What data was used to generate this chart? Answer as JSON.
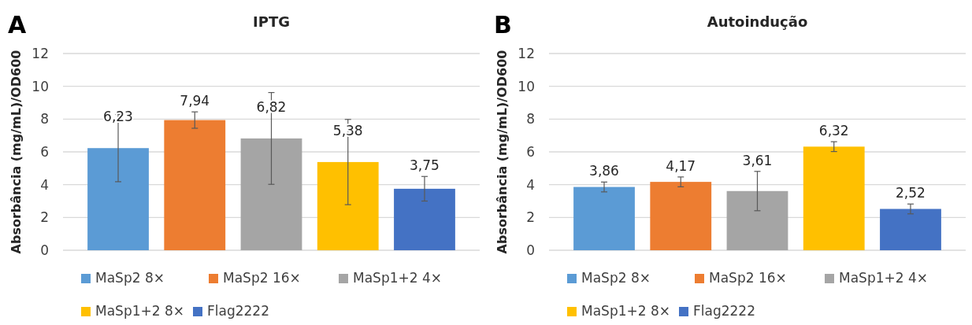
{
  "chart_data": [
    {
      "type": "bar",
      "title": "IPTG",
      "ylabel": "Absorbância (mg/mL)/OD600",
      "annotations": [
        "A"
      ],
      "categories": [
        null
      ],
      "ylim": [
        0,
        12
      ],
      "yticks": [
        0,
        2,
        4,
        6,
        8,
        10,
        12
      ],
      "grid": "y",
      "legend": "bottom",
      "tick_labels": "y",
      "series": [
        {
          "name": "MaSp2 8×",
          "color": "#5b9bd5",
          "values": [
            6.23
          ],
          "errors": [
            2.05
          ],
          "value_labels": [
            "6,23"
          ]
        },
        {
          "name": "MaSp2 16×",
          "color": "#ed7d31",
          "values": [
            7.94
          ],
          "errors": [
            0.5
          ],
          "value_labels": [
            "7,94"
          ]
        },
        {
          "name": "MaSp1+2 4×",
          "color": "#a5a5a5",
          "values": [
            6.82
          ],
          "errors": [
            2.8
          ],
          "value_labels": [
            "6,82"
          ]
        },
        {
          "name": "MaSp1+2 8×",
          "color": "#ffc000",
          "values": [
            5.38
          ],
          "errors": [
            2.6
          ],
          "value_labels": [
            "5,38"
          ]
        },
        {
          "name": "Flag2222",
          "color": "#4472c4",
          "values": [
            3.75
          ],
          "errors": [
            0.75
          ],
          "value_labels": [
            "3,75"
          ]
        }
      ]
    },
    {
      "type": "bar",
      "title": "Autoindução",
      "ylabel": "Absorbância (mg/mL)/OD600",
      "annotations": [
        "B"
      ],
      "categories": [
        null
      ],
      "ylim": [
        0,
        12
      ],
      "yticks": [
        0,
        2,
        4,
        6,
        8,
        10,
        12
      ],
      "grid": "y",
      "legend": "bottom",
      "tick_labels": "y",
      "series": [
        {
          "name": "MaSp2 8×",
          "color": "#5b9bd5",
          "values": [
            3.86
          ],
          "errors": [
            0.3
          ],
          "value_labels": [
            "3,86"
          ]
        },
        {
          "name": "MaSp2 16×",
          "color": "#ed7d31",
          "values": [
            4.17
          ],
          "errors": [
            0.3
          ],
          "value_labels": [
            "4,17"
          ]
        },
        {
          "name": "MaSp1+2 4×",
          "color": "#a5a5a5",
          "values": [
            3.61
          ],
          "errors": [
            1.2
          ],
          "value_labels": [
            "3,61"
          ]
        },
        {
          "name": "MaSp1+2 8×",
          "color": "#ffc000",
          "values": [
            6.32
          ],
          "errors": [
            0.3
          ],
          "value_labels": [
            "6,32"
          ]
        },
        {
          "name": "Flag2222",
          "color": "#4472c4",
          "values": [
            2.52
          ],
          "errors": [
            0.3
          ],
          "value_labels": [
            "2,52"
          ]
        }
      ]
    }
  ]
}
